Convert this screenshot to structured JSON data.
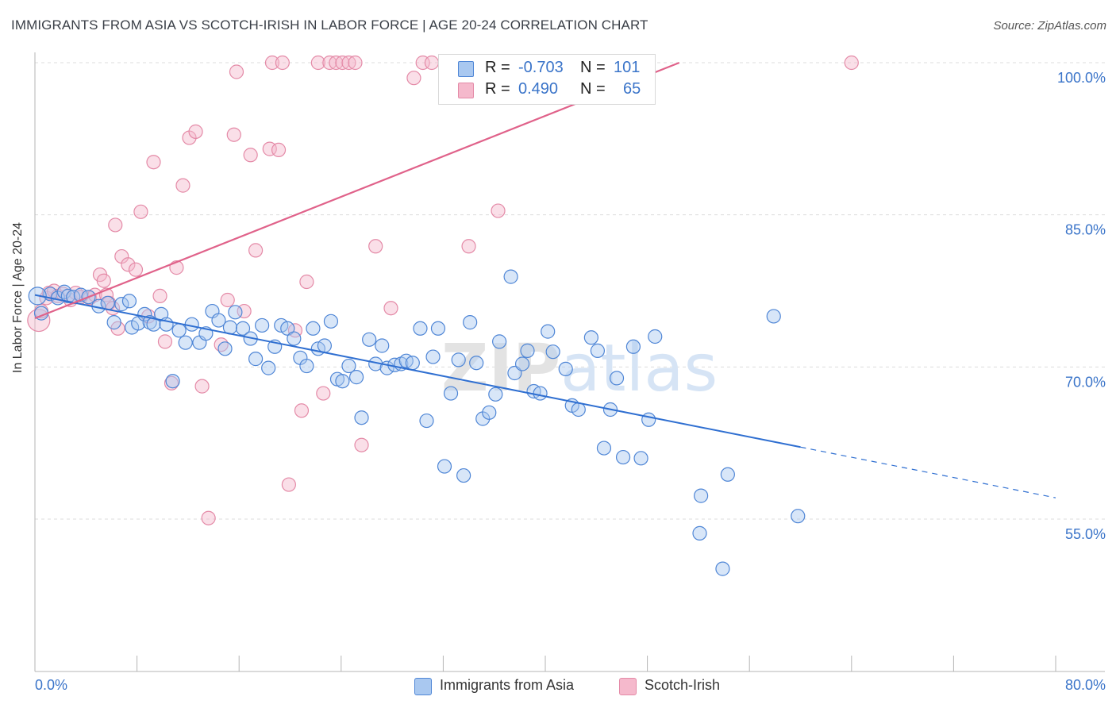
{
  "header": {
    "title": "IMMIGRANTS FROM ASIA VS SCOTCH-IRISH IN LABOR FORCE | AGE 20-24 CORRELATION CHART",
    "source": "Source: ZipAtlas.com"
  },
  "legend_top": {
    "rows": [
      {
        "r_label": "R =",
        "r_value": "-0.703",
        "n_label": "N =",
        "n_value": "101"
      },
      {
        "r_label": "R =",
        "r_value": "0.490",
        "n_label": "N =",
        "n_value": "65"
      }
    ]
  },
  "legend_bottom": {
    "items": [
      {
        "label": "Immigrants from Asia"
      },
      {
        "label": "Scotch-Irish"
      }
    ]
  },
  "colors": {
    "blue_fill": "#a9c8f0",
    "blue_stroke": "#4f86d6",
    "blue_line": "#2f6fd1",
    "pink_fill": "#f5b9cc",
    "pink_stroke": "#e48aa7",
    "pink_line": "#e0628a",
    "tick_text": "#3a74c9",
    "grid": "#dcdcdc"
  },
  "chart_data": {
    "type": "scatter",
    "title": "IMMIGRANTS FROM ASIA VS SCOTCH-IRISH IN LABOR FORCE | AGE 20-24 CORRELATION CHART",
    "xlabel": "",
    "ylabel": "In Labor Force | Age 20-24",
    "xlim": [
      0,
      80
    ],
    "ylim": [
      40,
      101.5
    ],
    "x_tick_labels": [
      {
        "value": 0,
        "label": "0.0%"
      },
      {
        "value": 80,
        "label": "80.0%"
      }
    ],
    "y_tick_labels": [
      {
        "value": 55,
        "label": "55.0%"
      },
      {
        "value": 70,
        "label": "70.0%"
      },
      {
        "value": 85,
        "label": "85.0%"
      },
      {
        "value": 100,
        "label": "100.0%"
      }
    ],
    "grid": true,
    "legend": "bottom",
    "watermark": "ZIPatlas",
    "series": [
      {
        "name": "Immigrants from Asia",
        "color": "#a9c8f0",
        "trend": {
          "x": [
            0,
            60
          ],
          "y": [
            77.1,
            62.1
          ],
          "dashed_to": [
            80,
            57.1
          ]
        },
        "points": [
          [
            0.5,
            75.3
          ],
          [
            1.2,
            77.2
          ],
          [
            1.8,
            76.8
          ],
          [
            2.3,
            77.4
          ],
          [
            2.6,
            77.0
          ],
          [
            3.0,
            76.9
          ],
          [
            3.6,
            77.1
          ],
          [
            4.2,
            76.9
          ],
          [
            5.0,
            76.0
          ],
          [
            5.7,
            76.3
          ],
          [
            6.2,
            74.4
          ],
          [
            6.8,
            76.2
          ],
          [
            7.4,
            76.5
          ],
          [
            7.6,
            73.9
          ],
          [
            8.1,
            74.3
          ],
          [
            8.6,
            75.2
          ],
          [
            9.0,
            74.4
          ],
          [
            9.3,
            74.2
          ],
          [
            9.9,
            75.2
          ],
          [
            10.3,
            74.2
          ],
          [
            10.8,
            68.6
          ],
          [
            11.3,
            73.6
          ],
          [
            11.8,
            72.4
          ],
          [
            12.3,
            74.2
          ],
          [
            12.9,
            72.4
          ],
          [
            13.4,
            73.3
          ],
          [
            13.9,
            75.5
          ],
          [
            14.4,
            74.6
          ],
          [
            14.9,
            71.8
          ],
          [
            15.3,
            73.9
          ],
          [
            15.7,
            75.4
          ],
          [
            16.3,
            73.8
          ],
          [
            16.9,
            72.8
          ],
          [
            17.3,
            70.8
          ],
          [
            17.8,
            74.1
          ],
          [
            18.3,
            69.9
          ],
          [
            18.8,
            72.0
          ],
          [
            19.3,
            74.1
          ],
          [
            19.8,
            73.8
          ],
          [
            20.3,
            72.8
          ],
          [
            20.8,
            70.9
          ],
          [
            21.3,
            70.1
          ],
          [
            21.8,
            73.8
          ],
          [
            22.2,
            71.8
          ],
          [
            22.7,
            72.1
          ],
          [
            23.2,
            74.5
          ],
          [
            23.7,
            68.8
          ],
          [
            24.1,
            68.6
          ],
          [
            24.6,
            70.1
          ],
          [
            25.2,
            69.0
          ],
          [
            25.6,
            65.0
          ],
          [
            26.2,
            72.7
          ],
          [
            26.7,
            70.3
          ],
          [
            27.2,
            72.1
          ],
          [
            27.6,
            69.9
          ],
          [
            28.2,
            70.2
          ],
          [
            28.7,
            70.3
          ],
          [
            29.1,
            70.6
          ],
          [
            29.6,
            70.4
          ],
          [
            30.2,
            73.8
          ],
          [
            30.7,
            64.7
          ],
          [
            31.2,
            71.0
          ],
          [
            31.6,
            73.8
          ],
          [
            32.1,
            60.2
          ],
          [
            32.6,
            67.4
          ],
          [
            33.2,
            70.7
          ],
          [
            33.6,
            59.3
          ],
          [
            34.1,
            74.4
          ],
          [
            34.6,
            70.4
          ],
          [
            35.1,
            64.9
          ],
          [
            35.6,
            65.5
          ],
          [
            36.1,
            67.3
          ],
          [
            36.4,
            72.5
          ],
          [
            37.3,
            78.9
          ],
          [
            37.6,
            69.4
          ],
          [
            38.2,
            70.3
          ],
          [
            38.6,
            71.6
          ],
          [
            39.1,
            67.6
          ],
          [
            39.6,
            67.4
          ],
          [
            40.2,
            73.5
          ],
          [
            40.6,
            71.5
          ],
          [
            41.6,
            69.8
          ],
          [
            42.1,
            66.2
          ],
          [
            42.6,
            65.8
          ],
          [
            43.6,
            72.9
          ],
          [
            44.1,
            71.6
          ],
          [
            44.6,
            62.0
          ],
          [
            45.1,
            65.8
          ],
          [
            45.6,
            68.9
          ],
          [
            46.1,
            61.1
          ],
          [
            46.9,
            72.0
          ],
          [
            47.5,
            61.0
          ],
          [
            48.1,
            64.8
          ],
          [
            48.6,
            73.0
          ],
          [
            52.2,
            57.3
          ],
          [
            52.1,
            53.6
          ],
          [
            53.9,
            50.1
          ],
          [
            54.3,
            59.4
          ],
          [
            57.9,
            75.0
          ],
          [
            59.8,
            55.3
          ],
          [
            0.2,
            77.0
          ]
        ]
      },
      {
        "name": "Scotch-Irish",
        "color": "#f5b9cc",
        "trend": {
          "x": [
            0,
            50.5
          ],
          "y": [
            74.8,
            100.0
          ]
        },
        "points": [
          [
            0.3,
            74.6
          ],
          [
            0.5,
            75.5
          ],
          [
            0.9,
            76.8
          ],
          [
            1.1,
            77.3
          ],
          [
            1.5,
            77.5
          ],
          [
            1.8,
            77.0
          ],
          [
            2.2,
            77.2
          ],
          [
            2.8,
            76.6
          ],
          [
            3.2,
            77.3
          ],
          [
            3.6,
            76.9
          ],
          [
            4.3,
            76.8
          ],
          [
            4.7,
            77.1
          ],
          [
            5.1,
            79.1
          ],
          [
            5.4,
            78.5
          ],
          [
            5.6,
            77.1
          ],
          [
            5.8,
            76.3
          ],
          [
            6.1,
            75.8
          ],
          [
            6.5,
            73.8
          ],
          [
            6.3,
            84.0
          ],
          [
            6.8,
            80.9
          ],
          [
            7.3,
            80.1
          ],
          [
            7.9,
            79.6
          ],
          [
            8.3,
            85.3
          ],
          [
            8.9,
            75.0
          ],
          [
            9.3,
            90.2
          ],
          [
            9.8,
            77.0
          ],
          [
            10.2,
            72.5
          ],
          [
            10.7,
            68.4
          ],
          [
            11.1,
            79.8
          ],
          [
            11.6,
            87.9
          ],
          [
            12.1,
            92.6
          ],
          [
            12.6,
            93.2
          ],
          [
            13.1,
            68.1
          ],
          [
            13.6,
            55.1
          ],
          [
            14.6,
            72.2
          ],
          [
            15.1,
            76.6
          ],
          [
            15.6,
            92.9
          ],
          [
            15.8,
            99.1
          ],
          [
            16.4,
            75.5
          ],
          [
            16.9,
            90.9
          ],
          [
            17.3,
            81.5
          ],
          [
            18.4,
            91.5
          ],
          [
            18.6,
            100.0
          ],
          [
            19.1,
            91.4
          ],
          [
            19.4,
            100.0
          ],
          [
            19.9,
            58.4
          ],
          [
            20.4,
            73.6
          ],
          [
            20.9,
            65.7
          ],
          [
            21.3,
            78.4
          ],
          [
            22.2,
            100.0
          ],
          [
            22.6,
            67.4
          ],
          [
            23.1,
            100.0
          ],
          [
            23.6,
            100.0
          ],
          [
            24.1,
            100.0
          ],
          [
            24.6,
            100.0
          ],
          [
            25.1,
            100.0
          ],
          [
            25.6,
            62.3
          ],
          [
            26.7,
            81.9
          ],
          [
            27.9,
            75.8
          ],
          [
            29.7,
            98.5
          ],
          [
            30.4,
            100.0
          ],
          [
            31.1,
            100.0
          ],
          [
            34.0,
            81.9
          ],
          [
            36.3,
            85.4
          ],
          [
            64.0,
            100.0
          ]
        ]
      }
    ]
  }
}
